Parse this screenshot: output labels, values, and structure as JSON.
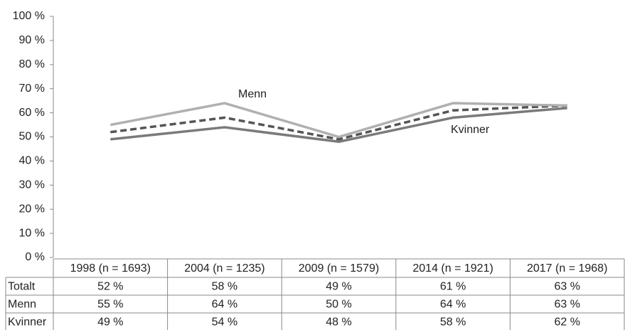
{
  "chart_data": {
    "type": "line",
    "categories": [
      "1998 (n = 1693)",
      "2004 (n = 1235)",
      "2009 (n = 1579)",
      "2014 (n = 1921)",
      "2017 (n = 1968)"
    ],
    "series": [
      {
        "name": "Totalt",
        "color": "#555555",
        "line_style": "dashed",
        "values": [
          52,
          58,
          49,
          61,
          63
        ],
        "value_labels": [
          "52 %",
          "58 %",
          "49 %",
          "61 %",
          "63 %"
        ]
      },
      {
        "name": "Menn",
        "color": "#b0b0b0",
        "line_style": "solid",
        "values": [
          55,
          64,
          50,
          64,
          63
        ],
        "value_labels": [
          "55 %",
          "64 %",
          "50 %",
          "64 %",
          "63 %"
        ]
      },
      {
        "name": "Kvinner",
        "color": "#7a7a7a",
        "line_style": "solid",
        "values": [
          49,
          54,
          48,
          58,
          62
        ],
        "value_labels": [
          "49 %",
          "54 %",
          "48 %",
          "58 %",
          "62 %"
        ]
      }
    ],
    "ylim": [
      0,
      100
    ],
    "yticks": [
      {
        "value": 0,
        "label": "0 %"
      },
      {
        "value": 10,
        "label": "10 %"
      },
      {
        "value": 20,
        "label": "20 %"
      },
      {
        "value": 30,
        "label": "30 %"
      },
      {
        "value": 40,
        "label": "40 %"
      },
      {
        "value": 50,
        "label": "50 %"
      },
      {
        "value": 60,
        "label": "60 %"
      },
      {
        "value": 70,
        "label": "70 %"
      },
      {
        "value": 80,
        "label": "80 %"
      },
      {
        "value": 90,
        "label": "90 %"
      },
      {
        "value": 100,
        "label": "100 %"
      }
    ],
    "grid": false,
    "data_table": true
  }
}
